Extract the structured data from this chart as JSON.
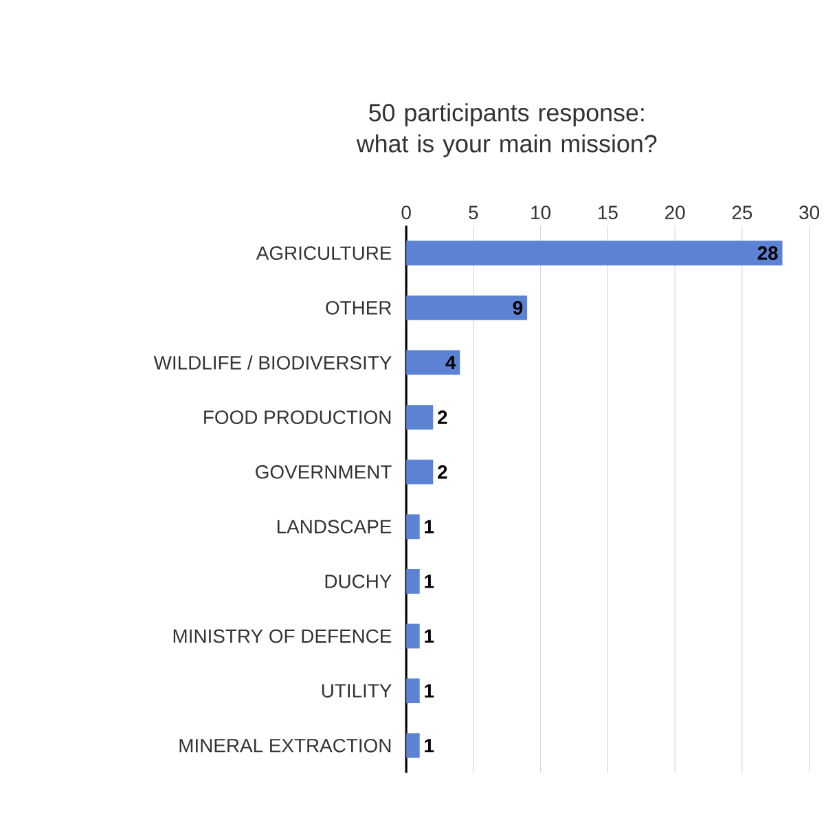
{
  "chart_data": {
    "type": "bar",
    "orientation": "horizontal",
    "title": "50 participants response: what is your main mission?",
    "categories": [
      "AGRICULTURE",
      "OTHER",
      "WILDLIFE / BIODIVERSITY",
      "FOOD PRODUCTION",
      "GOVERNMENT",
      "LANDSCAPE",
      "DUCHY",
      "MINISTRY OF DEFENCE",
      "UTILITY",
      "MINERAL EXTRACTION"
    ],
    "values": [
      28,
      9,
      4,
      2,
      2,
      1,
      1,
      1,
      1,
      1
    ],
    "color": "#5b82d3",
    "xlim": [
      0,
      30
    ],
    "xticks": [
      0,
      5,
      10,
      15,
      20,
      25,
      30
    ],
    "grid": "x",
    "data_labels": true
  }
}
